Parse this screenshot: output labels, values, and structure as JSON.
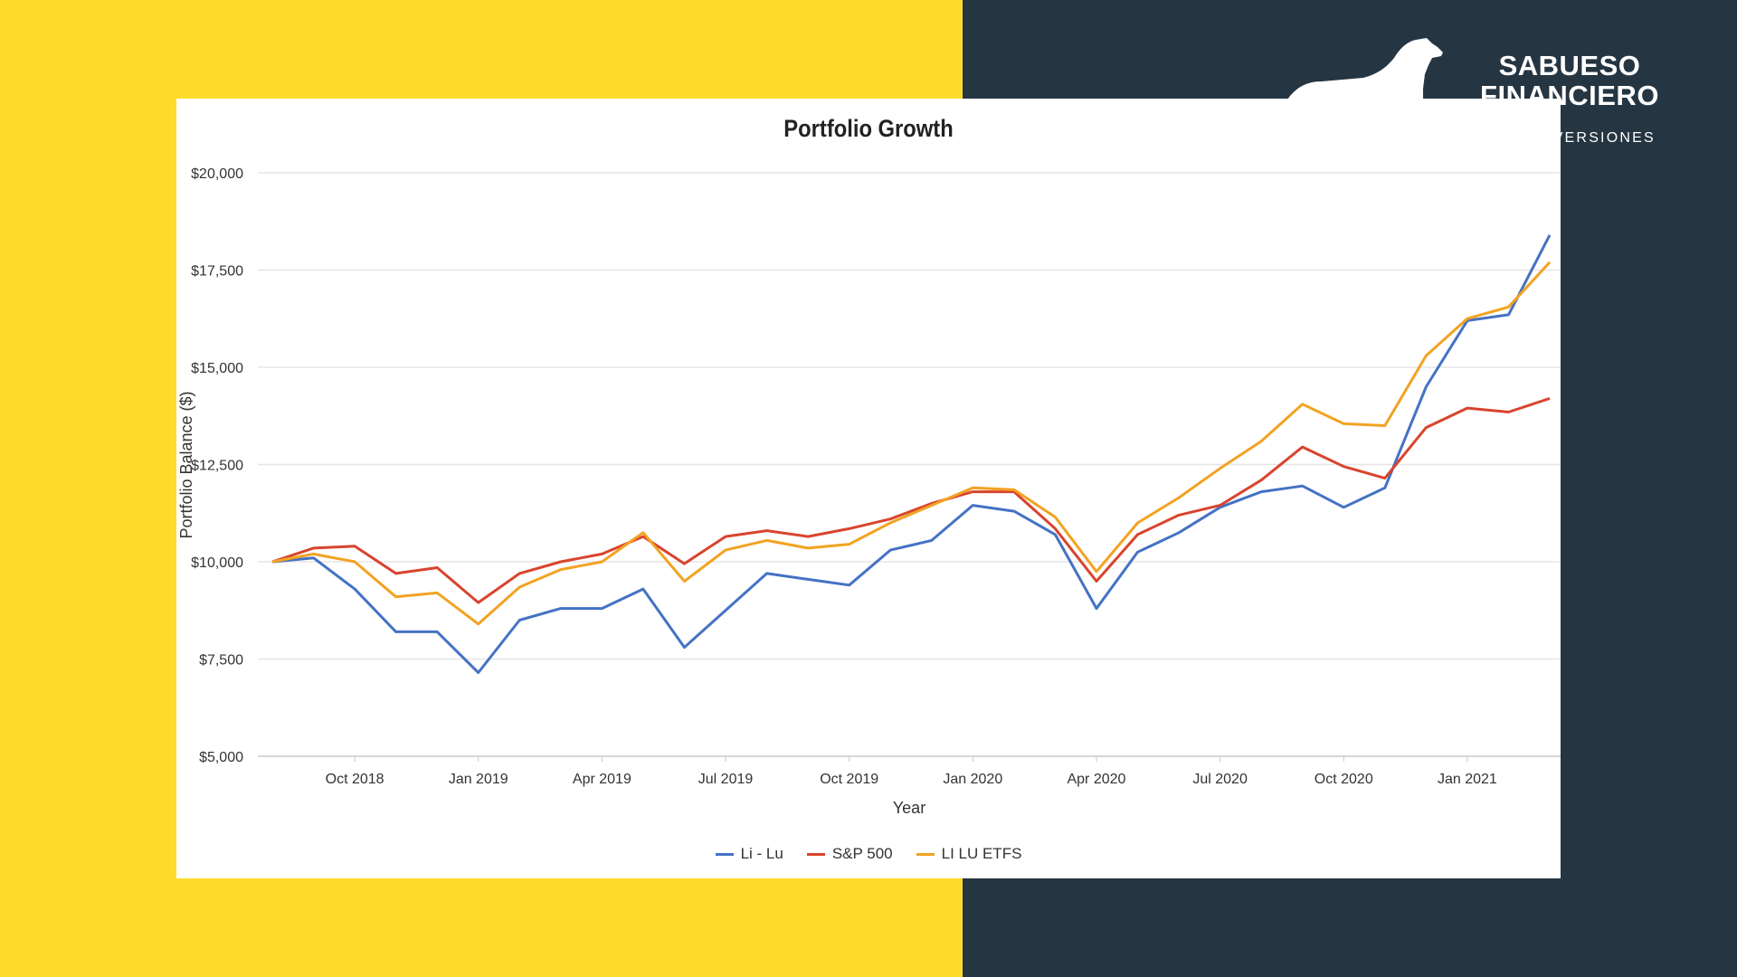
{
  "brand": {
    "name_line1": "SABUESO",
    "name_line2": "FINANCIERO",
    "tagline": "O INVERSIONES"
  },
  "colors": {
    "yellow": "#FDDC2B",
    "dark": "#253542",
    "series_li_lu": "#4472C4",
    "series_sp500": "#D9442E",
    "series_etfs": "#F2A322"
  },
  "chart_data": {
    "type": "line",
    "title": "Portfolio Growth",
    "xlabel": "Year",
    "ylabel": "Portfolio Balance ($)",
    "ylim": [
      5000,
      20000
    ],
    "yticks": [
      5000,
      7500,
      10000,
      12500,
      15000,
      17500,
      20000
    ],
    "ytick_labels": [
      "$5,000",
      "$7,500",
      "$10,000",
      "$12,500",
      "$15,000",
      "$17,500",
      "$20,000"
    ],
    "x": [
      "2018-07",
      "2018-08",
      "2018-09",
      "2018-10",
      "2018-11",
      "2018-12",
      "2019-01",
      "2019-02",
      "2019-03",
      "2019-04",
      "2019-05",
      "2019-06",
      "2019-07",
      "2019-08",
      "2019-09",
      "2019-10",
      "2019-11",
      "2019-12",
      "2020-01",
      "2020-02",
      "2020-03",
      "2020-04",
      "2020-05",
      "2020-06",
      "2020-07",
      "2020-08",
      "2020-09",
      "2020-10",
      "2020-11",
      "2020-12",
      "2021-01",
      "2021-02"
    ],
    "xticks": [
      {
        "index": 2,
        "label": "Oct 2018"
      },
      {
        "index": 5,
        "label": "Jan 2019"
      },
      {
        "index": 8,
        "label": "Apr 2019"
      },
      {
        "index": 11,
        "label": "Jul 2019"
      },
      {
        "index": 14,
        "label": "Oct 2019"
      },
      {
        "index": 17,
        "label": "Jan 2020"
      },
      {
        "index": 20,
        "label": "Apr 2020"
      },
      {
        "index": 23,
        "label": "Jul 2020"
      },
      {
        "index": 26,
        "label": "Oct 2020"
      },
      {
        "index": 29,
        "label": "Jan 2021"
      }
    ],
    "series": [
      {
        "name": "Li - Lu",
        "color": "#4472C4",
        "values": [
          10000,
          10100,
          9300,
          8200,
          8200,
          7150,
          8500,
          8800,
          8800,
          9300,
          7800,
          8750,
          9700,
          9550,
          9400,
          10300,
          10550,
          11450,
          11300,
          10700,
          8800,
          10250,
          10750,
          11400,
          11800,
          11950,
          11400,
          11900,
          14500,
          16200,
          16350,
          18400
        ]
      },
      {
        "name": "S&P 500",
        "color": "#D9442E",
        "values": [
          10000,
          10350,
          10400,
          9700,
          9850,
          8950,
          9700,
          10000,
          10200,
          10650,
          9950,
          10650,
          10800,
          10650,
          10850,
          11100,
          11500,
          11800,
          11800,
          10850,
          9500,
          10700,
          11200,
          11450,
          12100,
          12950,
          12450,
          12150,
          13450,
          13950,
          13850,
          14200
        ]
      },
      {
        "name": "LI LU ETFS",
        "color": "#F2A322",
        "values": [
          10000,
          10200,
          10000,
          9100,
          9200,
          8400,
          9350,
          9800,
          10000,
          10750,
          9500,
          10300,
          10550,
          10350,
          10450,
          11000,
          11450,
          11900,
          11850,
          11150,
          9750,
          11000,
          11650,
          12400,
          13100,
          14050,
          13550,
          13500,
          15300,
          16250,
          16550,
          17700
        ]
      }
    ],
    "legend": [
      "Li - Lu",
      "S&P 500",
      "LI LU ETFS"
    ]
  }
}
